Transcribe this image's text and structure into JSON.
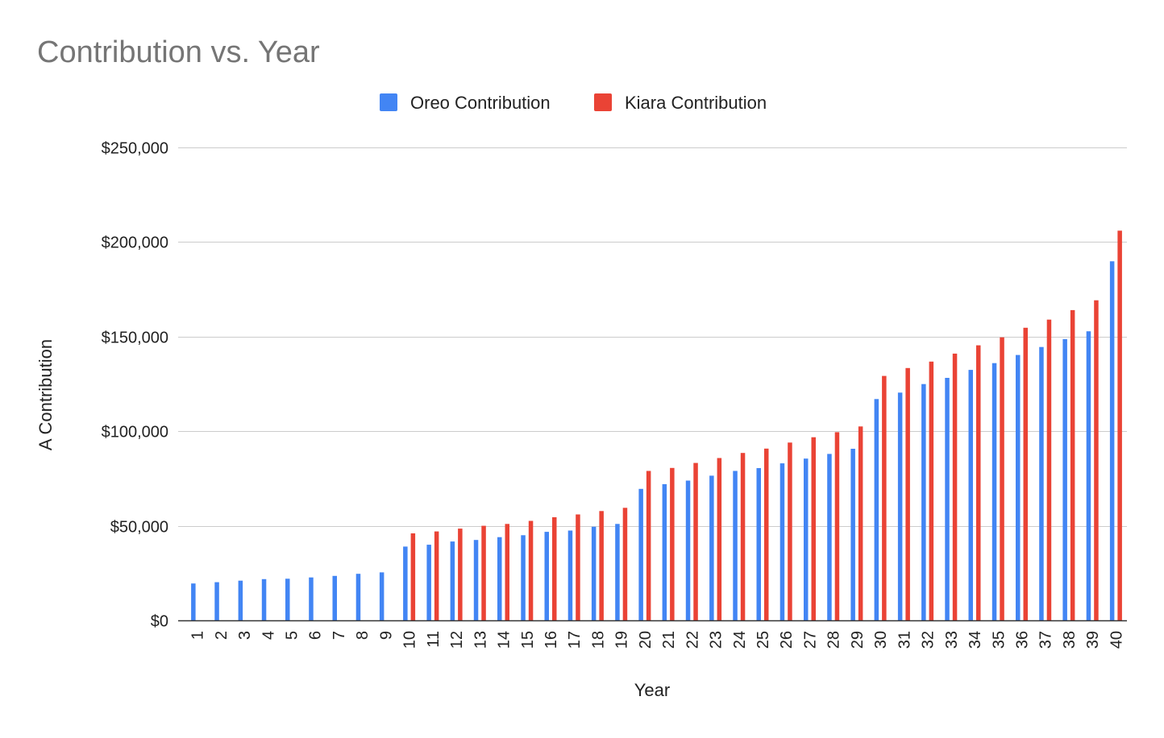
{
  "chart_data": {
    "type": "bar",
    "title": "Contribution vs. Year",
    "xlabel": "Year",
    "ylabel": "A Contribution",
    "ylim": [
      0,
      250000
    ],
    "yticks": [
      0,
      50000,
      100000,
      150000,
      200000,
      250000
    ],
    "ytick_labels": [
      "$0",
      "$50,000",
      "$100,000",
      "$150,000",
      "$200,000",
      "$250,000"
    ],
    "legend_position": "top-center",
    "grid": true,
    "categories": [
      "1",
      "2",
      "3",
      "4",
      "5",
      "6",
      "7",
      "8",
      "9",
      "10",
      "11",
      "12",
      "13",
      "14",
      "15",
      "16",
      "17",
      "18",
      "19",
      "20",
      "21",
      "22",
      "23",
      "24",
      "25",
      "26",
      "27",
      "28",
      "29",
      "30",
      "31",
      "32",
      "33",
      "34",
      "35",
      "36",
      "37",
      "38",
      "39",
      "40"
    ],
    "series": [
      {
        "name": "Oreo Contribution",
        "color": "#4285f4",
        "values": [
          19500,
          20200,
          21000,
          21800,
          22000,
          22700,
          23500,
          24600,
          25400,
          39000,
          40000,
          41700,
          42500,
          44000,
          45000,
          46800,
          47500,
          49500,
          51000,
          69500,
          72000,
          73900,
          76500,
          79000,
          80500,
          83000,
          85500,
          88000,
          90700,
          117000,
          120400,
          124900,
          128200,
          132400,
          136000,
          140300,
          144500,
          148700,
          152800,
          189800
        ]
      },
      {
        "name": "Kiara Contribution",
        "color": "#ea4335",
        "values": [
          0,
          0,
          0,
          0,
          0,
          0,
          0,
          0,
          0,
          46000,
          47000,
          48500,
          50000,
          51000,
          52600,
          54500,
          56000,
          57800,
          59500,
          79000,
          80600,
          83200,
          85800,
          88500,
          90800,
          94000,
          96800,
          99500,
          102500,
          129200,
          133400,
          136800,
          141000,
          145400,
          149600,
          154700,
          159000,
          164000,
          169200,
          206000
        ]
      }
    ]
  }
}
